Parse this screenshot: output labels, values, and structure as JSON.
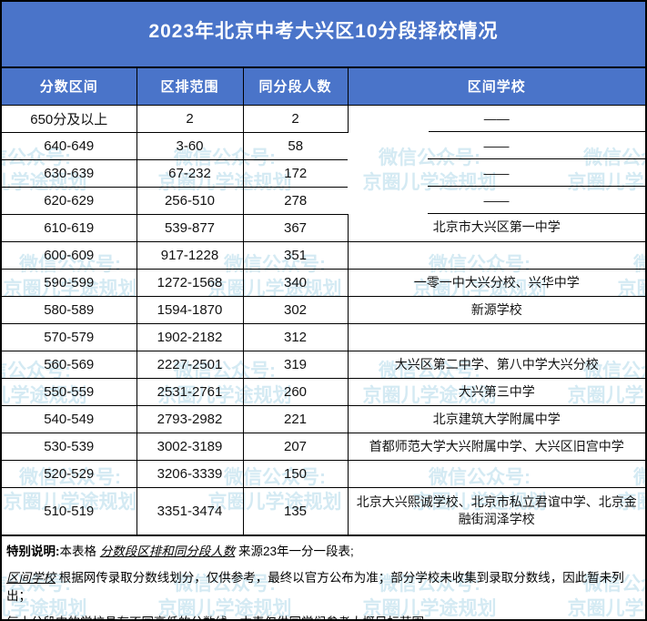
{
  "title": "2023年北京中考大兴区10分段择校情况",
  "watermark": {
    "line1": "微信公众号:",
    "line2": "京圈儿学途规划"
  },
  "colors": {
    "header_blue": "#4a74c9",
    "border_black": "#000000",
    "watermark_blue": "#80c0dd",
    "text_white": "#ffffff"
  },
  "table": {
    "headers": {
      "score_range": "分数区间",
      "rank_range": "区排范围",
      "segment_count": "同分段人数",
      "schools": "区间学校"
    },
    "rows": [
      {
        "range": "650分及以上",
        "rank": "2",
        "count": "2",
        "schools": "——"
      },
      {
        "range": "640-649",
        "rank": "3-60",
        "count": "58",
        "schools": "——"
      },
      {
        "range": "630-639",
        "rank": "67-232",
        "count": "172",
        "schools": "——"
      },
      {
        "range": "620-629",
        "rank": "256-510",
        "count": "278",
        "schools": "——"
      },
      {
        "range": "610-619",
        "rank": "539-877",
        "count": "367",
        "schools": "北京市大兴区第一中学"
      },
      {
        "range": "600-609",
        "rank": "917-1228",
        "count": "351",
        "schools": ""
      },
      {
        "range": "590-599",
        "rank": "1272-1568",
        "count": "340",
        "schools": "一零一中大兴分校、兴华中学"
      },
      {
        "range": "580-589",
        "rank": "1594-1870",
        "count": "302",
        "schools": "新源学校"
      },
      {
        "range": "570-579",
        "rank": "1902-2182",
        "count": "312",
        "schools": ""
      },
      {
        "range": "560-569",
        "rank": "2227-2501",
        "count": "319",
        "schools": "大兴区第二中学、第八中学大兴分校"
      },
      {
        "range": "550-559",
        "rank": "2531-2761",
        "count": "260",
        "schools": "大兴第三中学"
      },
      {
        "range": "540-549",
        "rank": "2793-2982",
        "count": "221",
        "schools": "北京建筑大学附属中学"
      },
      {
        "range": "530-539",
        "rank": "3002-3189",
        "count": "207",
        "schools": "首都师范大学大兴附属中学、大兴区旧宫中学"
      },
      {
        "range": "520-529",
        "rank": "3206-3339",
        "count": "150",
        "schools": ""
      },
      {
        "range": "510-519",
        "rank": "3351-3474",
        "count": "135",
        "schools": "北京大兴熙诚学校、北京市私立君谊中学、北京金融街润泽学校"
      }
    ]
  },
  "notes": {
    "label": "特别说明:",
    "line1_pre": "本表格 ",
    "line1_em": "分数段区排和同分段人数",
    "line1_post": " 来源23年一分一段表;",
    "line2_em": "区间学校",
    "line2_post": " 根据网传录取分数线划分，仅供参考，最终以官方公布为准；部分学校未收集到录取分数线，因此暂未列出；",
    "line3": "每十分段内的学校具有不同高低的分数线，本表仅供同学们参考大概目标范围。"
  }
}
